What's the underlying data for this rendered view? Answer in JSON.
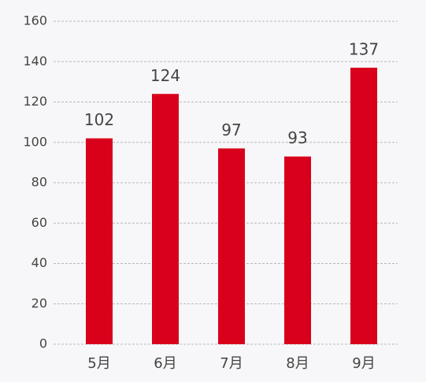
{
  "chart_data": {
    "type": "bar",
    "categories": [
      "5月",
      "6月",
      "7月",
      "8月",
      "9月"
    ],
    "values": [
      102,
      124,
      97,
      93,
      137
    ],
    "color": "#d9001b",
    "ylim": [
      0,
      160
    ],
    "yticks": [
      0,
      20,
      40,
      60,
      80,
      100,
      120,
      140,
      160
    ],
    "grid": true
  }
}
